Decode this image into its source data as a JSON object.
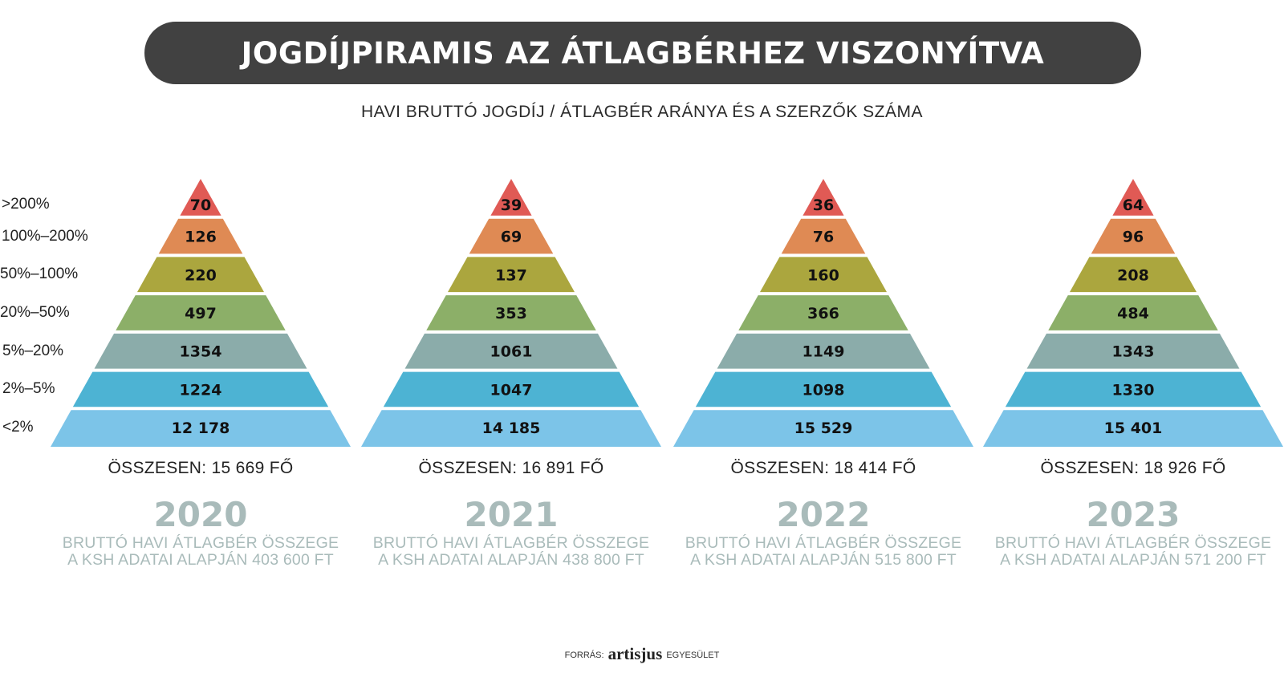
{
  "title": "JOGDÍJPIRAMIS AZ ÁTLAGBÉRHEZ VISZONYÍTVA",
  "subtitle": "HAVI BRUTTÓ JOGDÍJ / ÁTLAGBÉR ARÁNYA ÉS A SZERZŐK SZÁMA",
  "source": {
    "prefix": "FORRÁS:",
    "brand": "artisjus",
    "suffix": "EGYESÜLET"
  },
  "colors": {
    "title_bar": "#414141",
    "muted_text": "#a9bbba",
    "levels_top_to_bottom": [
      "#e05a55",
      "#df8a54",
      "#aba63e",
      "#8caf68",
      "#8bacaa",
      "#4db3d3",
      "#7cc4e8"
    ]
  },
  "chart_data": {
    "type": "pyramid",
    "row_labels_top_to_bottom": [
      ">200%",
      "100%–200%",
      "50%–100%",
      "20%–50%",
      "5%–20%",
      "2%–5%",
      "<2%"
    ],
    "pyramids": [
      {
        "year": "2020",
        "values_display": [
          "70",
          "126",
          "220",
          "497",
          "1354",
          "1224",
          "12 178"
        ],
        "values": [
          70,
          126,
          220,
          497,
          1354,
          1224,
          12178
        ],
        "total": "ÖSSZESEN: 15 669 FŐ",
        "wage_line1": "BRUTTÓ HAVI ÁTLAGBÉR ÖSSZEGE",
        "wage_line2": "A KSH ADATAI ALAPJÁN 403 600 FT"
      },
      {
        "year": "2021",
        "values_display": [
          "39",
          "69",
          "137",
          "353",
          "1061",
          "1047",
          "14 185"
        ],
        "values": [
          39,
          69,
          137,
          353,
          1061,
          1047,
          14185
        ],
        "total": "ÖSSZESEN: 16 891 FŐ",
        "wage_line1": "BRUTTÓ HAVI ÁTLAGBÉR ÖSSZEGE",
        "wage_line2": "A KSH ADATAI ALAPJÁN 438 800 FT"
      },
      {
        "year": "2022",
        "values_display": [
          "36",
          "76",
          "160",
          "366",
          "1149",
          "1098",
          "15 529"
        ],
        "values": [
          36,
          76,
          160,
          366,
          1149,
          1098,
          15529
        ],
        "total": "ÖSSZESEN: 18 414 FŐ",
        "wage_line1": "BRUTTÓ HAVI ÁTLAGBÉR ÖSSZEGE",
        "wage_line2": "A KSH ADATAI ALAPJÁN 515 800 FT"
      },
      {
        "year": "2023",
        "values_display": [
          "64",
          "96",
          "208",
          "484",
          "1343",
          "1330",
          "15 401"
        ],
        "values": [
          64,
          96,
          208,
          484,
          1343,
          1330,
          15401
        ],
        "total": "ÖSSZESEN: 18 926 FŐ",
        "wage_line1": "BRUTTÓ HAVI ÁTLAGBÉR ÖSSZEGE",
        "wage_line2": "A KSH ADATAI ALAPJÁN 571 200 FT"
      }
    ]
  }
}
